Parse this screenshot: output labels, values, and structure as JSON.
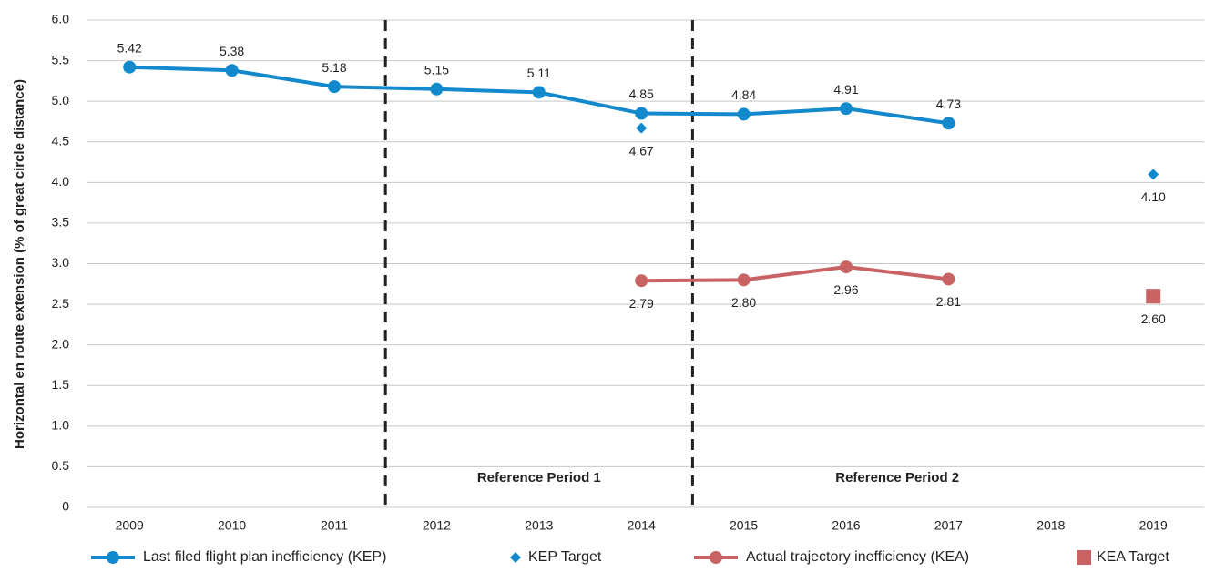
{
  "chart_data": {
    "type": "line",
    "y_label": "Horizontal en route extension (% of great circle distance)",
    "categories": [
      "2009",
      "2010",
      "2011",
      "2012",
      "2013",
      "2014",
      "2015",
      "2016",
      "2017",
      "2018",
      "2019"
    ],
    "series": [
      {
        "name": "Last filed flight plan inefficiency (KEP)",
        "color": "#1289cc",
        "marker": "circle",
        "line": true,
        "label_pos": "above",
        "values": [
          5.42,
          5.38,
          5.18,
          5.15,
          5.11,
          4.85,
          4.84,
          4.91,
          4.73,
          null,
          null
        ]
      },
      {
        "name": "KEP Target",
        "color": "#1289cc",
        "marker": "diamond",
        "line": false,
        "label_pos": "below",
        "values": [
          null,
          null,
          null,
          null,
          null,
          4.67,
          null,
          null,
          null,
          null,
          4.1
        ],
        "value_labels": [
          null,
          null,
          null,
          null,
          null,
          "4.67",
          null,
          null,
          null,
          null,
          "4.10"
        ]
      },
      {
        "name": "Actual trajectory inefficiency (KEA)",
        "color": "#c96363",
        "marker": "circle",
        "line": true,
        "label_pos": "below",
        "values": [
          null,
          null,
          null,
          null,
          null,
          2.79,
          2.8,
          2.96,
          2.81,
          null,
          null
        ],
        "value_labels": [
          null,
          null,
          null,
          null,
          null,
          "2.79",
          "2.80",
          "2.96",
          "2.81",
          null,
          null
        ]
      },
      {
        "name": "KEA Target",
        "color": "#c96363",
        "marker": "square",
        "line": false,
        "label_pos": "below",
        "values": [
          null,
          null,
          null,
          null,
          null,
          null,
          null,
          null,
          null,
          null,
          2.6
        ],
        "value_labels": [
          null,
          null,
          null,
          null,
          null,
          null,
          null,
          null,
          null,
          null,
          "2.60"
        ]
      }
    ],
    "annotations": [
      "Reference Period 1",
      "Reference Period 2"
    ],
    "ylim": [
      0,
      6
    ],
    "yticks": [
      0,
      {
        "value": 0.5,
        "label": "0.5"
      },
      {
        "value": 1,
        "label": "1.0"
      },
      {
        "value": 1.5,
        "label": "1.5"
      },
      {
        "value": 2,
        "label": "2.0"
      },
      {
        "value": 2.5,
        "label": "2.5"
      },
      {
        "value": 3,
        "label": "3.0"
      },
      {
        "value": 3.5,
        "label": "3.5"
      },
      {
        "value": 4,
        "label": "4.0"
      },
      {
        "value": 4.5,
        "label": "4.5"
      },
      {
        "value": 5,
        "label": "5.0"
      },
      {
        "value": 5.5,
        "label": "5.5"
      },
      {
        "value": 6,
        "label": "6.0"
      }
    ],
    "grid": true
  }
}
